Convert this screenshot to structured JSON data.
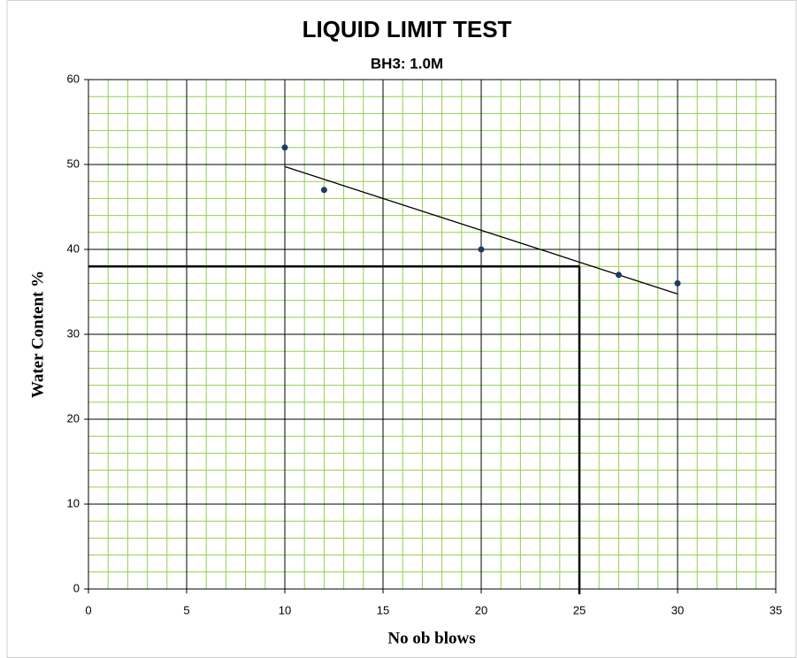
{
  "chart_data": {
    "type": "scatter",
    "title": "LIQUID LIMIT TEST",
    "subtitle": "BH3: 1.0M",
    "xlabel": "No ob blows",
    "ylabel": "Water Content %",
    "series": [
      {
        "color": "#1f3864",
        "x": [
          10,
          12,
          20,
          27,
          30
        ],
        "values": [
          52,
          47,
          40,
          37,
          36
        ]
      }
    ],
    "trendline": "linear",
    "liquid_limit": {
      "x": 25,
      "y": 38
    },
    "xlim": [
      0,
      35
    ],
    "xticks": [
      0,
      5,
      10,
      15,
      20,
      25,
      30,
      35
    ],
    "ylim": [
      0,
      60
    ],
    "yticks": [
      0,
      10,
      20,
      30,
      40,
      50,
      60
    ],
    "grid": true,
    "grid_color": "#000000",
    "minor_grid": {
      "x_step": 1,
      "y_step": 2,
      "color": "#92d050"
    }
  }
}
